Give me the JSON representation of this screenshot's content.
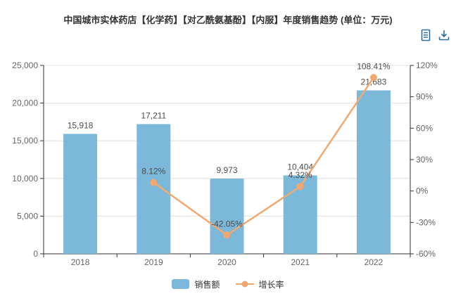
{
  "window": {
    "controls": [
      "minimize",
      "maximize"
    ]
  },
  "toolbox": {
    "icons": [
      "data-view",
      "save-as-image"
    ]
  },
  "chart_data": {
    "type": "bar",
    "title": "中国城市实体药店【化学药】【对乙酰氨基酚】【内服】年度销售趋势 (单位：万元)",
    "categories": [
      "2018",
      "2019",
      "2020",
      "2021",
      "2022"
    ],
    "series": [
      {
        "name": "销售额",
        "type": "bar",
        "axis": "left",
        "values": [
          15918,
          17211,
          9973,
          10404,
          21683
        ],
        "labels": [
          "15,918",
          "17,211",
          "9,973",
          "10,404",
          "21,683"
        ]
      },
      {
        "name": "增长率",
        "type": "line",
        "axis": "right",
        "values": [
          null,
          8.12,
          -42.05,
          4.32,
          108.41
        ],
        "labels": [
          "",
          "8.12%",
          "-42.05%",
          "4.32%",
          "108.41%"
        ]
      }
    ],
    "y_left_axis": {
      "min": 0,
      "max": 25000,
      "step": 5000,
      "tick_labels": [
        "0",
        "5,000",
        "10,000",
        "15,000",
        "20,000",
        "25,000"
      ]
    },
    "y_right_axis": {
      "min": -60,
      "max": 120,
      "step": 30,
      "tick_labels": [
        "-60%",
        "-30%",
        "0%",
        "30%",
        "60%",
        "90%",
        "120%"
      ]
    },
    "legend": [
      "销售额",
      "增长率"
    ],
    "grid": "horizontal-only",
    "legend_position": "bottom-center"
  },
  "colors": {
    "bar": "#7cb8da",
    "line": "#f2a86e",
    "axis": "#333333",
    "grid": "#e0e0e0",
    "tick_label": "#666666",
    "data_label": "#4d4d4d",
    "title": "#333333",
    "toolbox_icon": "#2e6da4",
    "window_control": "#7f7f7f"
  }
}
